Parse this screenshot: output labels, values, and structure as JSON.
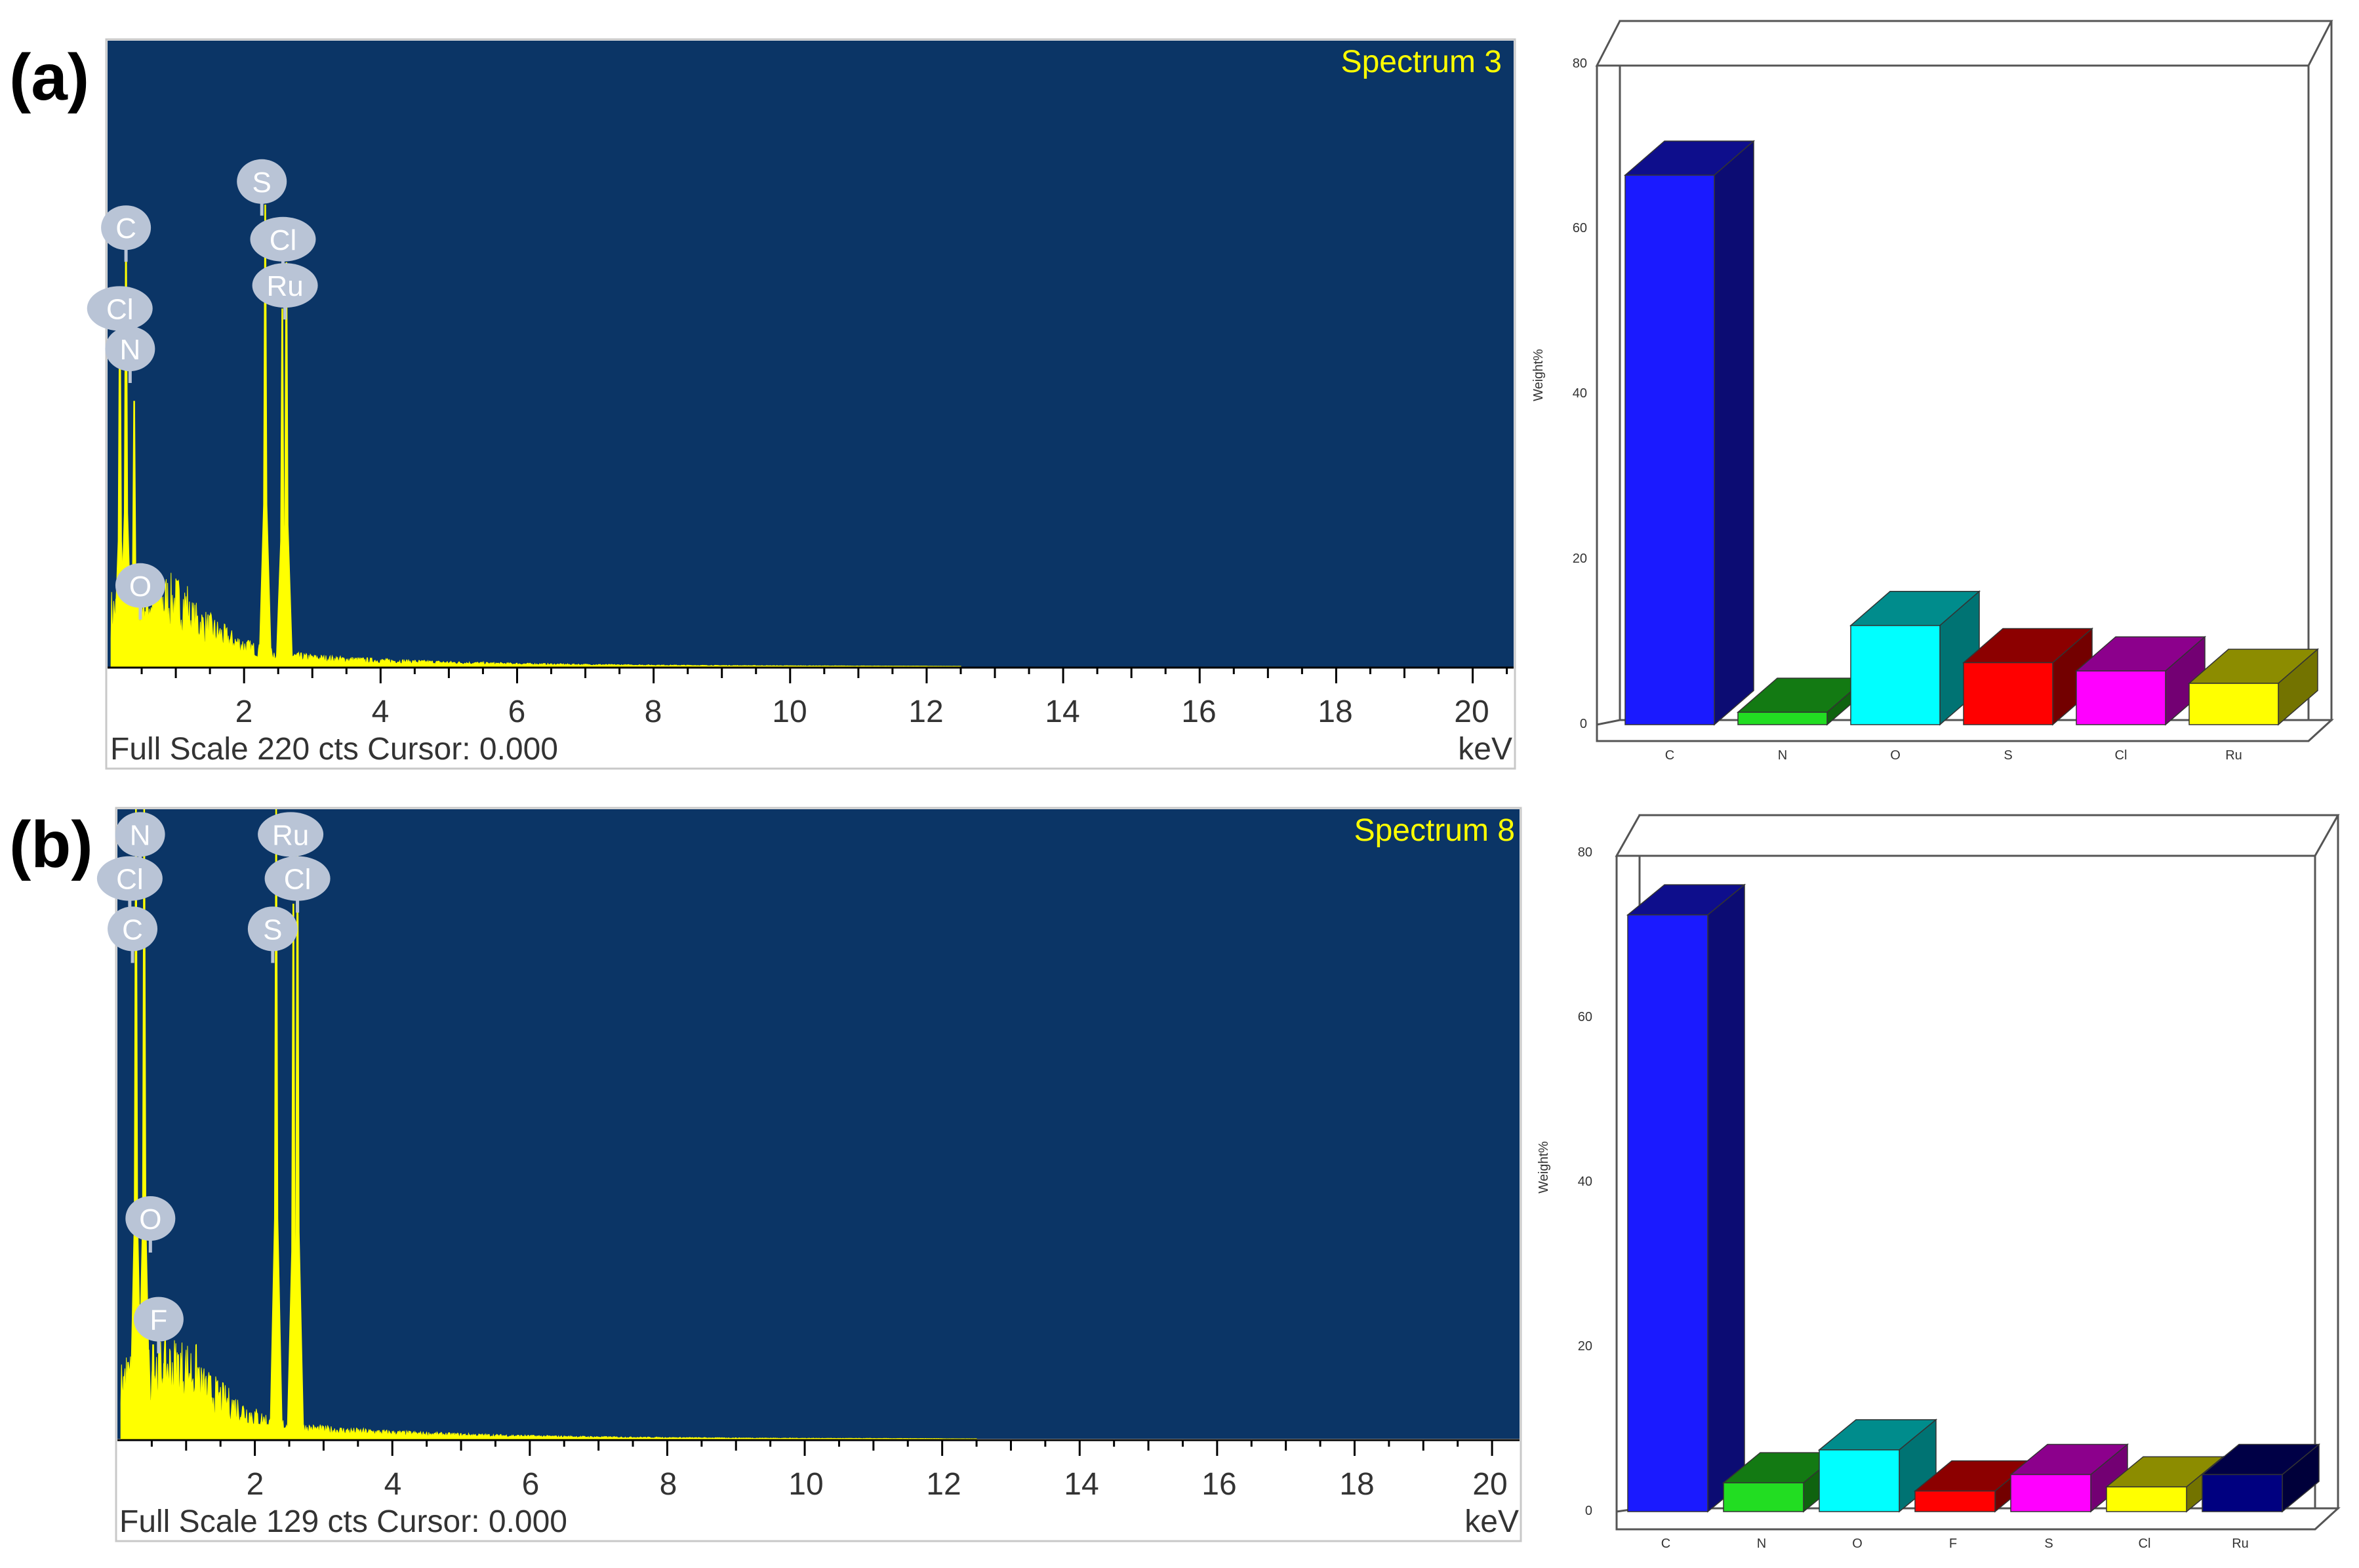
{
  "panels": [
    {
      "panel_label": "(a)",
      "spectrum": {
        "title": "Spectrum 3",
        "footer": "Full Scale 220 cts Cursor: 0.000",
        "unit": "keV",
        "background_color": "#0b3566",
        "trace_color": "#ffff00",
        "full_scale_counts": 220,
        "x_range_keV": [
          0,
          20.6
        ],
        "x_tick_labels": [
          "2",
          "4",
          "6",
          "8",
          "10",
          "12",
          "14",
          "16",
          "18",
          "20"
        ],
        "peaks": [
          {
            "label": "C",
            "energy_keV": 0.27,
            "height_fraction": 0.76
          },
          {
            "label": "Cl",
            "energy_keV": 0.18,
            "height_fraction": 0.62
          },
          {
            "label": "N",
            "energy_keV": 0.39,
            "height_fraction": 0.46
          },
          {
            "label": "O",
            "energy_keV": 0.52,
            "height_fraction": 0.09
          },
          {
            "label": "S",
            "energy_keV": 2.31,
            "height_fraction": 0.8
          },
          {
            "label": "Cl",
            "energy_keV": 2.62,
            "height_fraction": 0.7
          },
          {
            "label": "Ru",
            "energy_keV": 2.56,
            "height_fraction": 0.62
          }
        ],
        "marker_labels": [
          {
            "text": "C",
            "energy_keV": 0.27,
            "level": 0.76
          },
          {
            "text": "Cl",
            "energy_keV": 0.18,
            "level": 0.62
          },
          {
            "text": "N",
            "energy_keV": 0.33,
            "level": 0.55
          },
          {
            "text": "O",
            "energy_keV": 0.48,
            "level": 0.14
          },
          {
            "text": "S",
            "energy_keV": 2.26,
            "level": 0.84
          },
          {
            "text": "Cl",
            "energy_keV": 2.57,
            "level": 0.74
          },
          {
            "text": "Ru",
            "energy_keV": 2.6,
            "level": 0.66
          }
        ]
      },
      "bar_chart": {
        "ylabel": "Weight%",
        "ylim": [
          0,
          80
        ],
        "y_ticks": [
          "0",
          "20",
          "40",
          "60",
          "80"
        ],
        "categories": [
          "C",
          "N",
          "O",
          "S",
          "Cl",
          "Ru"
        ],
        "values": [
          66.5,
          1.5,
          12.0,
          7.5,
          6.5,
          5.0
        ],
        "colors": [
          "#1a1aff",
          "#22dd22",
          "#00ffff",
          "#ff0000",
          "#ff00ff",
          "#ffff00"
        ]
      }
    },
    {
      "panel_label": "(b)",
      "spectrum": {
        "title": "Spectrum 8",
        "footer": "Full Scale 129 cts Cursor: 0.000",
        "unit": "keV",
        "background_color": "#0b3566",
        "trace_color": "#ffff00",
        "full_scale_counts": 129,
        "x_range_keV": [
          0,
          20.4
        ],
        "x_tick_labels": [
          "2",
          "4",
          "6",
          "8",
          "10",
          "12",
          "14",
          "16",
          "18",
          "20"
        ],
        "peaks": [
          {
            "label": "C",
            "energy_keV": 0.27,
            "height_fraction": 1.0
          },
          {
            "label": "N",
            "energy_keV": 0.39,
            "height_fraction": 1.0
          },
          {
            "label": "O",
            "energy_keV": 0.52,
            "height_fraction": 0.15
          },
          {
            "label": "F",
            "energy_keV": 0.68,
            "height_fraction": 0.12
          },
          {
            "label": "S",
            "energy_keV": 2.31,
            "height_fraction": 1.0
          },
          {
            "label": "Cl",
            "energy_keV": 2.62,
            "height_fraction": 0.94
          },
          {
            "label": "Ru",
            "energy_keV": 2.56,
            "height_fraction": 0.85
          }
        ],
        "marker_labels": [
          {
            "text": "N",
            "energy_keV": 0.33,
            "level": 0.96
          },
          {
            "text": "Cl",
            "energy_keV": 0.18,
            "level": 0.89
          },
          {
            "text": "C",
            "energy_keV": 0.22,
            "level": 0.81
          },
          {
            "text": "O",
            "energy_keV": 0.48,
            "level": 0.35
          },
          {
            "text": "F",
            "energy_keV": 0.6,
            "level": 0.19
          },
          {
            "text": "Ru",
            "energy_keV": 2.52,
            "level": 0.96
          },
          {
            "text": "Cl",
            "energy_keV": 2.62,
            "level": 0.89
          },
          {
            "text": "S",
            "energy_keV": 2.26,
            "level": 0.81
          }
        ]
      },
      "bar_chart": {
        "ylabel": "Weight%",
        "ylim": [
          0,
          80
        ],
        "y_ticks": [
          "0",
          "20",
          "40",
          "60",
          "80"
        ],
        "categories": [
          "C",
          "N",
          "O",
          "F",
          "S",
          "Cl",
          "Ru"
        ],
        "values": [
          72.5,
          3.5,
          7.5,
          2.5,
          4.5,
          3.0,
          4.5
        ],
        "colors": [
          "#1a1aff",
          "#22dd22",
          "#00ffff",
          "#ff0000",
          "#ff00ff",
          "#ffff00",
          "#000080"
        ]
      }
    }
  ],
  "chart_data": [
    {
      "type": "line",
      "title": "Spectrum 3",
      "xlabel": "keV",
      "xlim": [
        0,
        20.6
      ],
      "x_ticks": [
        2,
        4,
        6,
        8,
        10,
        12,
        14,
        16,
        18,
        20
      ],
      "ylabel": "",
      "ylim": [
        0,
        220
      ],
      "full_scale": "Full Scale 220 cts Cursor: 0.000",
      "peaks": [
        {
          "element": "C",
          "keV": 0.27
        },
        {
          "element": "Cl",
          "keV": 0.18
        },
        {
          "element": "N",
          "keV": 0.39
        },
        {
          "element": "O",
          "keV": 0.52
        },
        {
          "element": "S",
          "keV": 2.31
        },
        {
          "element": "Cl",
          "keV": 2.62
        },
        {
          "element": "Ru",
          "keV": 2.56
        }
      ]
    },
    {
      "type": "bar",
      "title": "",
      "categories": [
        "C",
        "N",
        "O",
        "S",
        "Cl",
        "Ru"
      ],
      "values": [
        66.5,
        1.5,
        12.0,
        7.5,
        6.5,
        5.0
      ],
      "xlabel": "",
      "ylabel": "Weight%",
      "ylim": [
        0,
        80
      ]
    },
    {
      "type": "line",
      "title": "Spectrum 8",
      "xlabel": "keV",
      "xlim": [
        0,
        20.4
      ],
      "x_ticks": [
        2,
        4,
        6,
        8,
        10,
        12,
        14,
        16,
        18,
        20
      ],
      "ylabel": "",
      "ylim": [
        0,
        129
      ],
      "full_scale": "Full Scale 129 cts Cursor: 0.000",
      "peaks": [
        {
          "element": "N",
          "keV": 0.39
        },
        {
          "element": "Cl",
          "keV": 0.18
        },
        {
          "element": "C",
          "keV": 0.27
        },
        {
          "element": "O",
          "keV": 0.52
        },
        {
          "element": "F",
          "keV": 0.68
        },
        {
          "element": "Ru",
          "keV": 2.56
        },
        {
          "element": "Cl",
          "keV": 2.62
        },
        {
          "element": "S",
          "keV": 2.31
        }
      ]
    },
    {
      "type": "bar",
      "title": "",
      "categories": [
        "C",
        "N",
        "O",
        "F",
        "S",
        "Cl",
        "Ru"
      ],
      "values": [
        72.5,
        3.5,
        7.5,
        2.5,
        4.5,
        3.0,
        4.5
      ],
      "xlabel": "",
      "ylabel": "Weight%",
      "ylim": [
        0,
        80
      ]
    }
  ]
}
